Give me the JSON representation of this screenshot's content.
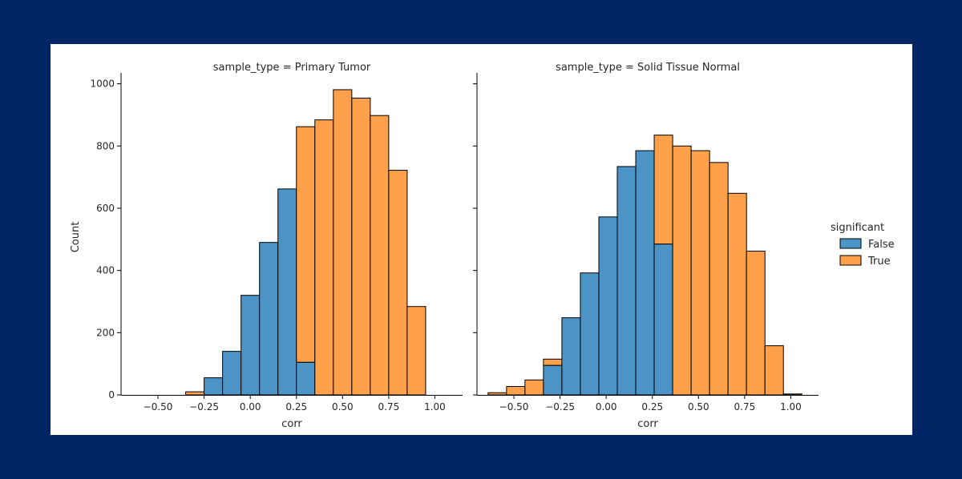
{
  "colors": {
    "page_background": "#022665",
    "panel_background": "#ffffff",
    "false_color": "#4c93c6",
    "true_color": "#ffa04a",
    "edge_color": "#000000"
  },
  "chart_data": [
    {
      "type": "bar",
      "subtype": "stacked histogram",
      "title": "sample_type = Primary Tumor",
      "xlabel": "corr",
      "ylabel": "Count",
      "xlim": [
        -0.7,
        1.15
      ],
      "ylim": [
        0,
        1035
      ],
      "xticks": [
        -0.5,
        -0.25,
        0.0,
        0.25,
        0.5,
        0.75,
        1.0
      ],
      "xtick_labels": [
        "−0.50",
        "−0.25",
        "0.00",
        "0.25",
        "0.50",
        "0.75",
        "1.00"
      ],
      "yticks": [
        0,
        200,
        400,
        600,
        800,
        1000
      ],
      "ytick_labels": [
        "0",
        "200",
        "400",
        "600",
        "800",
        "1000"
      ],
      "bins": [
        {
          "x0": -0.35,
          "x1": -0.25,
          "false": 0,
          "true": 10
        },
        {
          "x0": -0.25,
          "x1": -0.15,
          "false": 55,
          "true": 0
        },
        {
          "x0": -0.15,
          "x1": -0.05,
          "false": 140,
          "true": 0
        },
        {
          "x0": -0.05,
          "x1": 0.05,
          "false": 320,
          "true": 0
        },
        {
          "x0": 0.05,
          "x1": 0.15,
          "false": 490,
          "true": 0
        },
        {
          "x0": 0.15,
          "x1": 0.25,
          "false": 662,
          "true": 0
        },
        {
          "x0": 0.25,
          "x1": 0.35,
          "false": 105,
          "true": 757
        },
        {
          "x0": 0.35,
          "x1": 0.45,
          "false": 0,
          "true": 884
        },
        {
          "x0": 0.45,
          "x1": 0.55,
          "false": 0,
          "true": 981
        },
        {
          "x0": 0.55,
          "x1": 0.65,
          "false": 0,
          "true": 954
        },
        {
          "x0": 0.65,
          "x1": 0.75,
          "false": 0,
          "true": 898
        },
        {
          "x0": 0.75,
          "x1": 0.85,
          "false": 0,
          "true": 722
        },
        {
          "x0": 0.85,
          "x1": 0.95,
          "false": 0,
          "true": 284
        }
      ]
    },
    {
      "type": "bar",
      "subtype": "stacked histogram",
      "title": "sample_type = Solid Tissue Normal",
      "xlabel": "corr",
      "ylabel": "",
      "xlim": [
        -0.7,
        1.15
      ],
      "ylim": [
        0,
        1035
      ],
      "xticks": [
        -0.5,
        -0.25,
        0.0,
        0.25,
        0.5,
        0.75,
        1.0
      ],
      "xtick_labels": [
        "−0.50",
        "−0.25",
        "0.00",
        "0.25",
        "0.50",
        "0.75",
        "1.00"
      ],
      "yticks": [
        0,
        200,
        400,
        600,
        800,
        1000
      ],
      "bins": [
        {
          "x0": -0.64,
          "x1": -0.54,
          "false": 0,
          "true": 7
        },
        {
          "x0": -0.54,
          "x1": -0.44,
          "false": 0,
          "true": 27
        },
        {
          "x0": -0.44,
          "x1": -0.34,
          "false": 0,
          "true": 48
        },
        {
          "x0": -0.34,
          "x1": -0.24,
          "false": 95,
          "true": 20
        },
        {
          "x0": -0.24,
          "x1": -0.14,
          "false": 248,
          "true": 0
        },
        {
          "x0": -0.14,
          "x1": -0.04,
          "false": 392,
          "true": 0
        },
        {
          "x0": -0.04,
          "x1": 0.06,
          "false": 572,
          "true": 0
        },
        {
          "x0": 0.06,
          "x1": 0.16,
          "false": 734,
          "true": 0
        },
        {
          "x0": 0.16,
          "x1": 0.26,
          "false": 785,
          "true": 0
        },
        {
          "x0": 0.26,
          "x1": 0.36,
          "false": 485,
          "true": 350
        },
        {
          "x0": 0.36,
          "x1": 0.46,
          "false": 0,
          "true": 800
        },
        {
          "x0": 0.46,
          "x1": 0.56,
          "false": 0,
          "true": 785
        },
        {
          "x0": 0.56,
          "x1": 0.66,
          "false": 0,
          "true": 747
        },
        {
          "x0": 0.66,
          "x1": 0.76,
          "false": 0,
          "true": 648
        },
        {
          "x0": 0.76,
          "x1": 0.86,
          "false": 0,
          "true": 462
        },
        {
          "x0": 0.86,
          "x1": 0.96,
          "false": 0,
          "true": 158
        },
        {
          "x0": 0.96,
          "x1": 1.06,
          "false": 0,
          "true": 3
        }
      ]
    }
  ],
  "legend": {
    "title": "significant",
    "entries": [
      {
        "label": "False",
        "color": "#4c93c6"
      },
      {
        "label": "True",
        "color": "#ffa04a"
      }
    ],
    "placement": "right"
  }
}
